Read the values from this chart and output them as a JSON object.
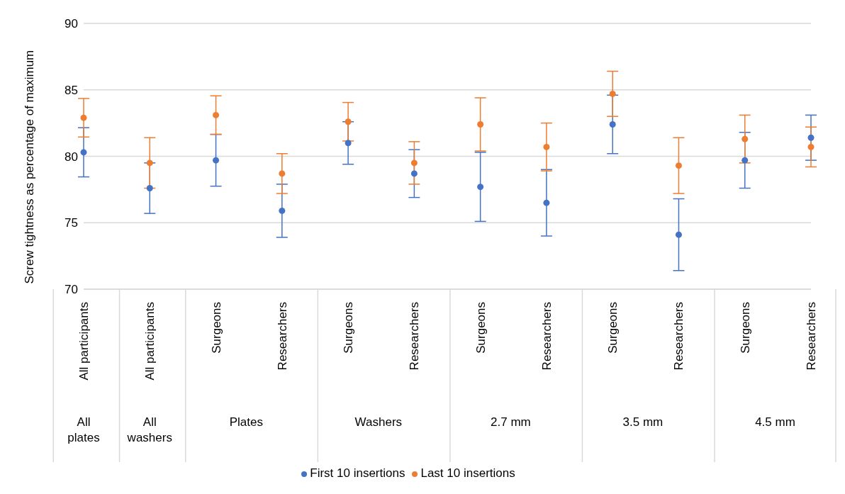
{
  "chart_data": {
    "type": "scatter",
    "ylabel": "Screw tightness as percentage of maximum",
    "categories": [
      "All participants",
      "All participants",
      "Surgeons",
      "Researchers",
      "Surgeons",
      "Researchers",
      "Surgeons",
      "Researchers",
      "Surgeons",
      "Researchers",
      "Surgeons",
      "Researchers"
    ],
    "annotations": [
      "All plates",
      "All washers",
      "Plates",
      "Washers",
      "2.7 mm",
      "3.5 mm",
      "4.5 mm"
    ],
    "series": [
      {
        "name": "First 10 insertions",
        "color": "#4472c4",
        "values": [
          80.3,
          77.6,
          79.7,
          75.9,
          81.0,
          78.7,
          77.7,
          76.5,
          82.4,
          74.1,
          79.7,
          81.4
        ],
        "errors": [
          1.85,
          1.9,
          1.95,
          2.0,
          1.6,
          1.8,
          2.6,
          2.5,
          2.2,
          2.7,
          2.1,
          1.7
        ]
      },
      {
        "name": "Last 10 insertions",
        "color": "#ed7d31",
        "values": [
          82.9,
          79.5,
          83.1,
          78.7,
          82.6,
          79.5,
          82.4,
          80.7,
          84.7,
          79.3,
          81.3,
          80.7
        ],
        "errors": [
          1.45,
          1.9,
          1.45,
          1.5,
          1.45,
          1.6,
          2.0,
          1.8,
          1.7,
          2.1,
          1.8,
          1.5
        ]
      }
    ],
    "ylim": [
      70,
      90
    ],
    "yticks": [
      70,
      75,
      80,
      85,
      90
    ],
    "grid": "y",
    "legend": "bottom",
    "marker": "circle"
  }
}
